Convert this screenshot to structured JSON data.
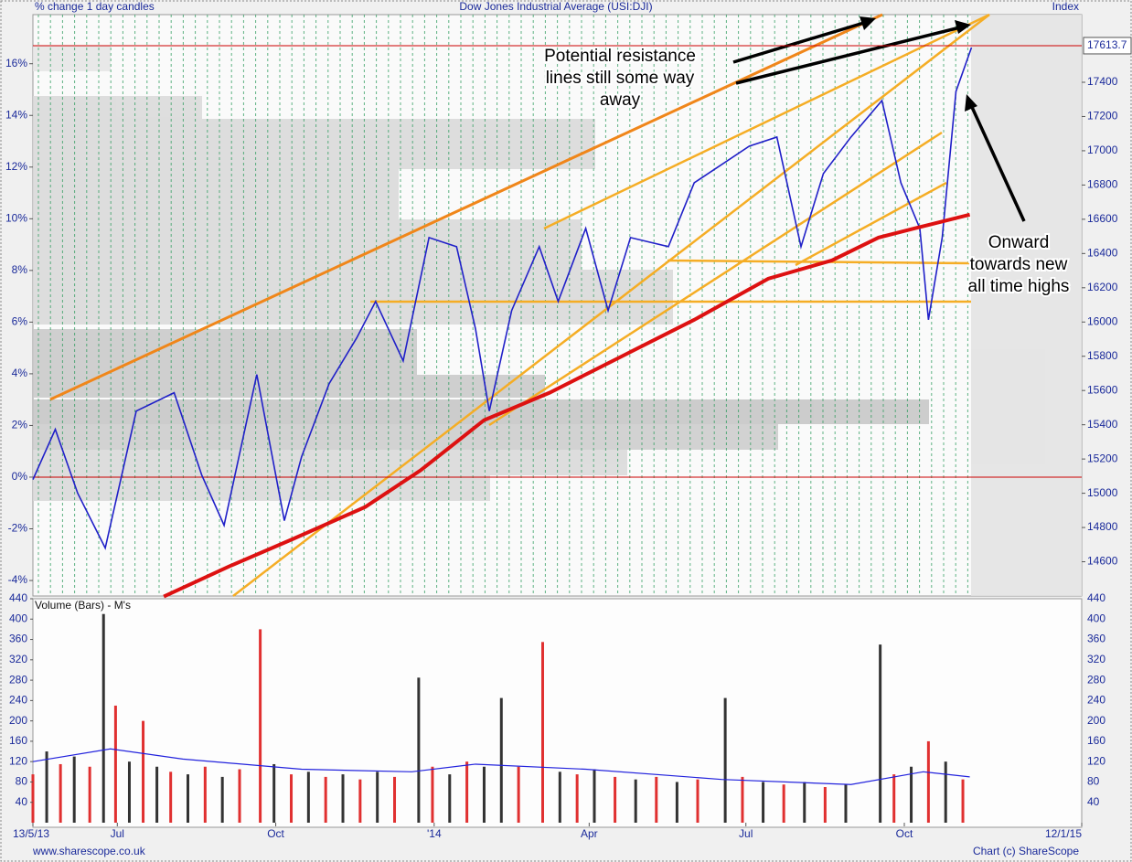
{
  "chart_data": [
    {
      "type": "line",
      "title": "Dow Jones Industrial Average (USI:DJI)",
      "subtitle": "% change 1 day candles",
      "y_axis_label": "Index",
      "xlim": [
        0,
        609
      ],
      "xticks": [
        {
          "value": 0,
          "label": "13/5/13"
        },
        {
          "value": 49,
          "label": "Jul"
        },
        {
          "value": 141,
          "label": "Oct"
        },
        {
          "value": 233,
          "label": "'14"
        },
        {
          "value": 323,
          "label": "Apr"
        },
        {
          "value": 414,
          "label": "Jul"
        },
        {
          "value": 506,
          "label": "Oct"
        },
        {
          "value": 609,
          "label": "12/1/15"
        }
      ],
      "ylim": [
        14400,
        17795
      ],
      "yticks": [
        14600,
        14800,
        15000,
        15200,
        15400,
        15600,
        15800,
        16000,
        16200,
        16400,
        16600,
        16800,
        17000,
        17200,
        17400
      ],
      "y2lim": [
        -4.6,
        17.9
      ],
      "y2ticks": [
        {
          "value": -4,
          "label": "-4%"
        },
        {
          "value": -2,
          "label": "-2%"
        },
        {
          "value": 0,
          "label": "0%"
        },
        {
          "value": 2,
          "label": "2%"
        },
        {
          "value": 4,
          "label": "4%"
        },
        {
          "value": 6,
          "label": "6%"
        },
        {
          "value": 8,
          "label": "8%"
        },
        {
          "value": 10,
          "label": "10%"
        },
        {
          "value": 12,
          "label": "12%"
        },
        {
          "value": 14,
          "label": "14%"
        },
        {
          "value": 16,
          "label": "16%"
        }
      ],
      "reference_line_color": "#cc0000",
      "last_price": 17613.7,
      "series": [
        {
          "color": "#2020c8",
          "x": [
            0,
            13,
            26,
            42,
            60,
            82,
            98,
            111,
            130,
            146,
            156,
            172,
            188,
            199,
            215,
            230,
            246,
            257,
            265,
            278,
            294,
            305,
            321,
            334,
            347,
            369,
            384,
            400,
            416,
            432,
            446,
            459,
            475,
            493,
            504,
            515,
            520,
            528,
            536,
            545
          ],
          "values": [
            15080,
            15373,
            15000,
            14680,
            15480,
            15587,
            15107,
            14813,
            15693,
            14840,
            15213,
            15640,
            15907,
            16120,
            15773,
            16493,
            16440,
            15960,
            15480,
            16067,
            16440,
            16120,
            16547,
            16067,
            16493,
            16440,
            16813,
            16920,
            17027,
            17080,
            16440,
            16867,
            17080,
            17293,
            16813,
            16547,
            16013,
            16493,
            17347,
            17603
          ]
        },
        {
          "color": "#dd1111",
          "x": [
            76,
            114,
            151,
            193,
            225,
            262,
            300,
            342,
            384,
            427,
            464,
            491,
            512,
            544
          ],
          "values": [
            14397,
            14573,
            14733,
            14920,
            15133,
            15427,
            15587,
            15800,
            16013,
            16253,
            16360,
            16493,
            16547,
            16627
          ]
        }
      ],
      "annotations": [
        [
          "Potential resistance",
          "lines still some way",
          "away"
        ],
        [
          "Onward",
          "towards new",
          "all time highs"
        ]
      ]
    },
    {
      "type": "bar",
      "title": "Volume (Bars) - M's",
      "ylim": [
        0,
        440
      ],
      "yticks": [
        40,
        80,
        120,
        160,
        200,
        240,
        280,
        320,
        360,
        400,
        440
      ],
      "x": [
        0,
        8,
        16,
        24,
        33,
        41,
        48,
        56,
        64,
        72,
        80,
        90,
        100,
        110,
        120,
        132,
        140,
        150,
        160,
        170,
        180,
        190,
        200,
        210,
        224,
        232,
        242,
        252,
        262,
        272,
        282,
        296,
        306,
        316,
        326,
        338,
        350,
        362,
        374,
        386,
        402,
        412,
        424,
        436,
        448,
        460,
        472,
        492,
        500,
        510,
        520,
        530,
        540
      ],
      "values": [
        95,
        140,
        115,
        130,
        110,
        410,
        230,
        120,
        200,
        110,
        100,
        95,
        110,
        90,
        105,
        380,
        115,
        95,
        100,
        90,
        95,
        85,
        100,
        90,
        285,
        110,
        95,
        120,
        110,
        245,
        110,
        355,
        100,
        95,
        105,
        90,
        85,
        90,
        80,
        85,
        245,
        90,
        80,
        75,
        80,
        70,
        75,
        350,
        95,
        110,
        160,
        120,
        85
      ],
      "colors": [
        "#e03030",
        "#333333",
        "#e03030",
        "#333333",
        "#e03030",
        "#333333",
        "#e03030",
        "#333333",
        "#e03030",
        "#333333",
        "#e03030",
        "#333333",
        "#e03030",
        "#333333",
        "#e03030",
        "#e03030",
        "#333333",
        "#e03030",
        "#333333",
        "#e03030",
        "#333333",
        "#e03030",
        "#333333",
        "#e03030",
        "#333333",
        "#e03030",
        "#333333",
        "#e03030",
        "#333333",
        "#333333",
        "#e03030",
        "#e03030",
        "#333333",
        "#e03030",
        "#333333",
        "#e03030",
        "#333333",
        "#e03030",
        "#333333",
        "#e03030",
        "#333333",
        "#e03030",
        "#333333",
        "#e03030",
        "#333333",
        "#e03030",
        "#333333",
        "#333333",
        "#e03030",
        "#333333",
        "#e03030",
        "#333333",
        "#e03030"
      ],
      "average": {
        "color": "#2222dd",
        "x": [
          0,
          45,
          87,
          156,
          220,
          257,
          321,
          400,
          475,
          517,
          544
        ],
        "values": [
          120,
          145,
          125,
          105,
          100,
          115,
          105,
          85,
          75,
          100,
          90
        ]
      }
    }
  ],
  "footer": {
    "left": "www.sharescope.co.uk",
    "right": "Chart (c) ShareScope"
  }
}
